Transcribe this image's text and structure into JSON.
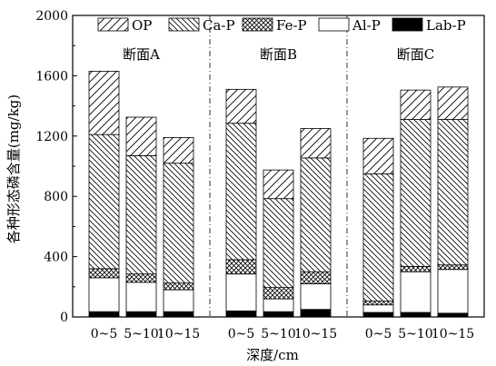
{
  "chart_data": {
    "type": "bar",
    "stacked": true,
    "ylabel": "各种形态磷含量(mg/kg)",
    "xlabel": "深度/cm",
    "ylim": [
      0,
      2000
    ],
    "yticks": [
      0,
      400,
      800,
      1200,
      1600,
      2000
    ],
    "legend_position": "top",
    "legend": [
      {
        "name": "OP",
        "pattern": "hatch-light-wide"
      },
      {
        "name": "Ca-P",
        "pattern": "hatch-dense"
      },
      {
        "name": "Fe-P",
        "pattern": "crosshatch"
      },
      {
        "name": "Al-P",
        "pattern": "white"
      },
      {
        "name": "Lab-P",
        "pattern": "black"
      }
    ],
    "groups": [
      {
        "label": "断面A",
        "categories": [
          "0~5",
          "5~10",
          "10~15"
        ],
        "stacks": [
          {
            "Lab-P": 35,
            "Al-P": 225,
            "Fe-P": 60,
            "Ca-P": 890,
            "OP": 420
          },
          {
            "Lab-P": 35,
            "Al-P": 195,
            "Fe-P": 55,
            "Ca-P": 785,
            "OP": 255
          },
          {
            "Lab-P": 35,
            "Al-P": 145,
            "Fe-P": 45,
            "Ca-P": 795,
            "OP": 170
          }
        ]
      },
      {
        "label": "断面B",
        "categories": [
          "0~5",
          "5~10",
          "10~15"
        ],
        "stacks": [
          {
            "Lab-P": 40,
            "Al-P": 245,
            "Fe-P": 95,
            "Ca-P": 905,
            "OP": 225
          },
          {
            "Lab-P": 35,
            "Al-P": 85,
            "Fe-P": 75,
            "Ca-P": 590,
            "OP": 190
          },
          {
            "Lab-P": 50,
            "Al-P": 170,
            "Fe-P": 80,
            "Ca-P": 755,
            "OP": 195
          }
        ]
      },
      {
        "label": "断面C",
        "categories": [
          "0~5",
          "5~10",
          "10~15"
        ],
        "stacks": [
          {
            "Lab-P": 30,
            "Al-P": 50,
            "Fe-P": 25,
            "Ca-P": 845,
            "OP": 235
          },
          {
            "Lab-P": 30,
            "Al-P": 270,
            "Fe-P": 35,
            "Ca-P": 975,
            "OP": 195
          },
          {
            "Lab-P": 25,
            "Al-P": 290,
            "Fe-P": 30,
            "Ca-P": 965,
            "OP": 215
          }
        ]
      }
    ]
  }
}
